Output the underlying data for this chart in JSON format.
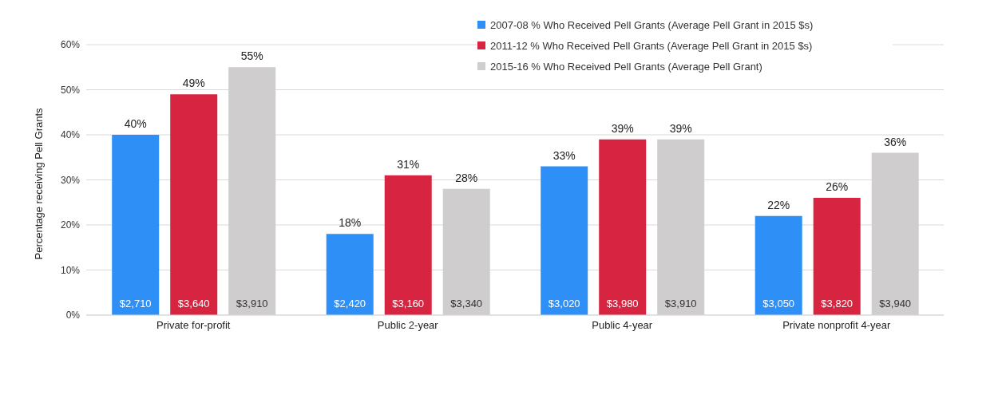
{
  "chart_data": {
    "type": "bar",
    "ylabel": "Percentage receiving Pell Grants",
    "categories": [
      "Private for-profit",
      "Public 2-year",
      "Public 4-year",
      "Private nonprofit 4-year"
    ],
    "series": [
      {
        "name": "2007-08 % Who Received Pell Grants (Average Pell Grant in 2015 $s)",
        "color": "#2e8ff7",
        "values": [
          40,
          18,
          33,
          22
        ],
        "value_labels": [
          "40%",
          "18%",
          "33%",
          "22%"
        ]
      },
      {
        "name": "2011-12 % Who Received Pell Grants (Average Pell Grant in 2015 $s)",
        "color": "#d72541",
        "values": [
          49,
          31,
          39,
          26
        ],
        "value_labels": [
          "49%",
          "31%",
          "39%",
          "26%"
        ]
      },
      {
        "name": "2015-16 % Who Received Pell Grants (Average Pell Grant)",
        "color": "#cfcdce",
        "values": [
          55,
          28,
          39,
          36
        ],
        "value_labels": [
          "55%",
          "28%",
          "39%",
          "36%"
        ]
      }
    ],
    "annotations": [
      "$2,710",
      "$3,640",
      "$3,910",
      "$2,420",
      "$3,160",
      "$3,340",
      "$3,020",
      "$3,980",
      "$3,910",
      "$3,050",
      "$3,820",
      "$3,940"
    ],
    "ylim": [
      0,
      60
    ],
    "yticks": [
      {
        "value": 0,
        "label": "0%"
      },
      {
        "value": 10,
        "label": "10%"
      },
      {
        "value": 20,
        "label": "20%"
      },
      {
        "value": 30,
        "label": "30%"
      },
      {
        "value": 40,
        "label": "40%"
      },
      {
        "value": 50,
        "label": "50%"
      },
      {
        "value": 60,
        "label": "60%"
      }
    ],
    "grid": "y",
    "legend": "top right"
  }
}
